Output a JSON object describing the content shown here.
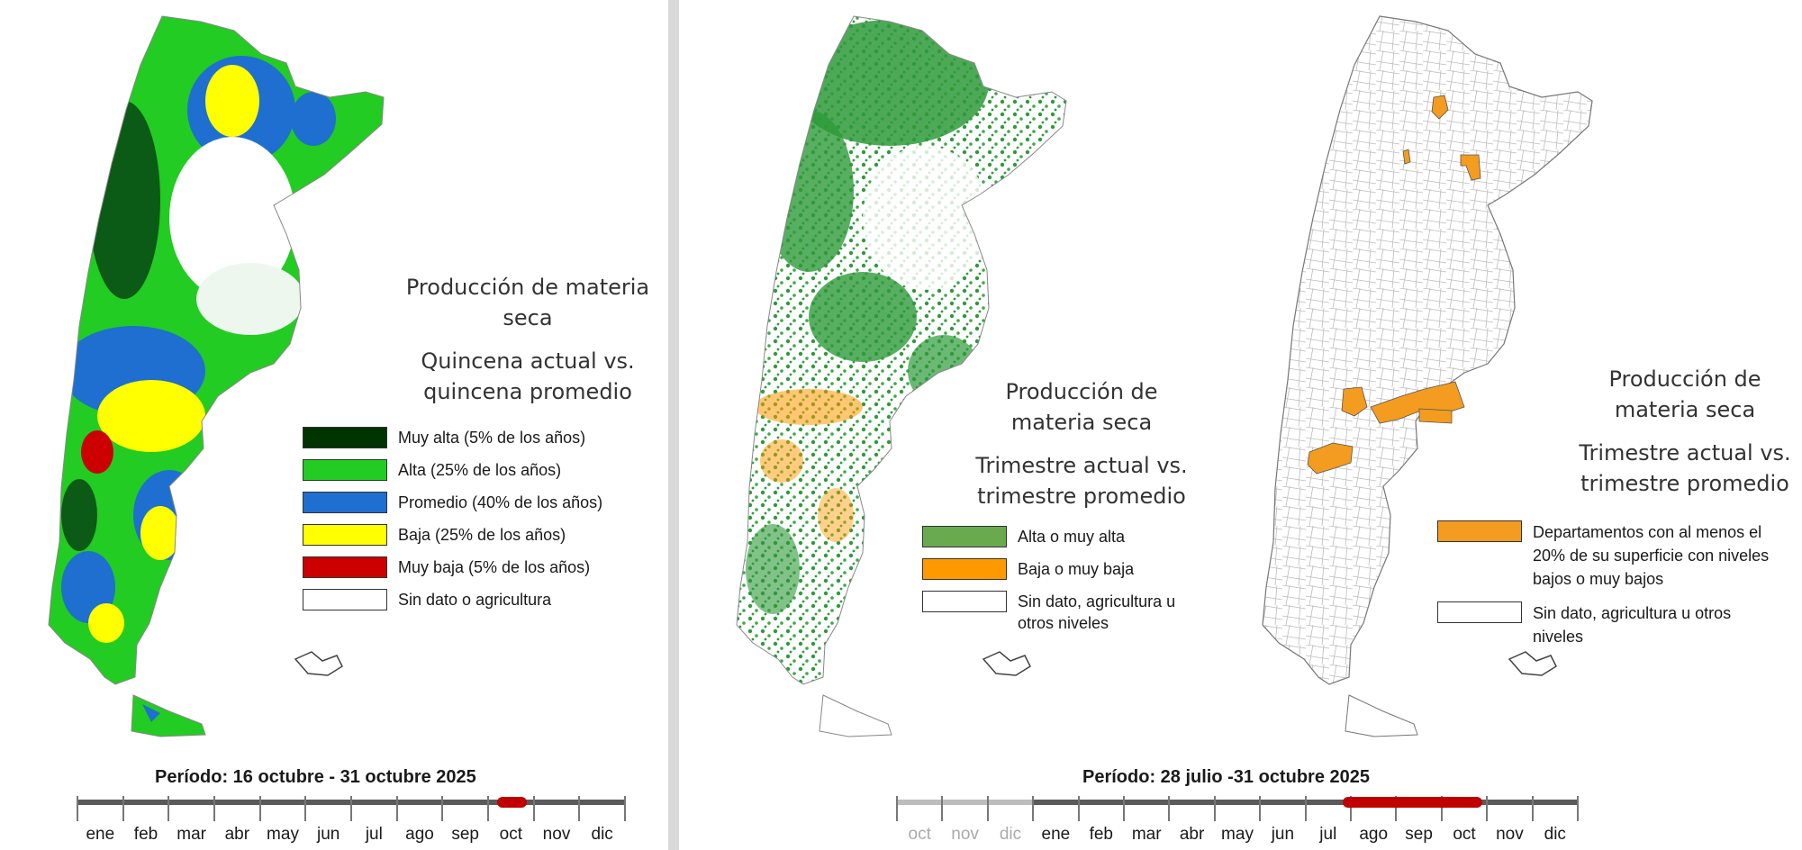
{
  "colors": {
    "muy_alta": "#003300",
    "alta": "#22cc22",
    "promedio": "#1e6fd0",
    "baja": "#ffff00",
    "muy_baja": "#cc0000",
    "sin_dato": "#ffffff",
    "alta_o_muy_alta": "#6aaa4f",
    "baja_o_muy_baja": "#ff9900",
    "departamentos": "#f39c1f",
    "timeline_bar": "#5a5a5a",
    "timeline_highlight": "#c00000"
  },
  "left": {
    "title_lines": [
      "Producción de materia",
      "seca"
    ],
    "subtitle_lines": [
      "Quincena actual vs.",
      "quincena  promedio"
    ],
    "legend": [
      {
        "label": "Muy alta (5% de los años)",
        "color": "#003300"
      },
      {
        "label": "Alta (25% de los años)",
        "color": "#22cc22"
      },
      {
        "label": "Promedio (40% de los años)",
        "color": "#1e6fd0"
      },
      {
        "label": "Baja (25% de los años)",
        "color": "#ffff00"
      },
      {
        "label": "Muy baja (5% de los años)",
        "color": "#cc0000"
      },
      {
        "label": "Sin dato o agricultura",
        "color": "#ffffff"
      }
    ],
    "period_label": "Período:  16 octubre  - 31 octubre 2025",
    "months": [
      "ene",
      "feb",
      "mar",
      "abr",
      "may",
      "jun",
      "jul",
      "ago",
      "sep",
      "oct",
      "nov",
      "dic"
    ],
    "highlight_fraction": [
      0.766,
      0.82
    ]
  },
  "middle": {
    "title_lines": [
      "Producción de",
      "materia seca"
    ],
    "subtitle_lines": [
      "Trimestre actual vs.",
      "trimestre promedio"
    ],
    "legend": [
      {
        "label": "Alta o muy alta",
        "color": "#6aaa4f"
      },
      {
        "label": "Baja o muy baja",
        "color": "#ff9900"
      },
      {
        "label": "Sin dato, agricultura u otros niveles",
        "color": "#ffffff"
      }
    ]
  },
  "right": {
    "title_lines": [
      "Producción de",
      "materia seca"
    ],
    "subtitle_lines": [
      "Trimestre actual vs.",
      "trimestre promedio"
    ],
    "legend": [
      {
        "label": "Departamentos con al menos el 20% de su superficie con niveles bajos o muy bajos",
        "color": "#f39c1f"
      },
      {
        "label": "Sin dato, agricultura u otros niveles",
        "color": "#ffffff"
      }
    ]
  },
  "bottom_right": {
    "period_label": "Período:  28 julio -31 octubre 2025",
    "months_prev": [
      "oct",
      "nov",
      "dic"
    ],
    "months": [
      "ene",
      "feb",
      "mar",
      "abr",
      "may",
      "jun",
      "jul",
      "ago",
      "sep",
      "oct",
      "nov",
      "dic"
    ],
    "highlight_fraction": [
      0.655,
      0.86
    ]
  }
}
